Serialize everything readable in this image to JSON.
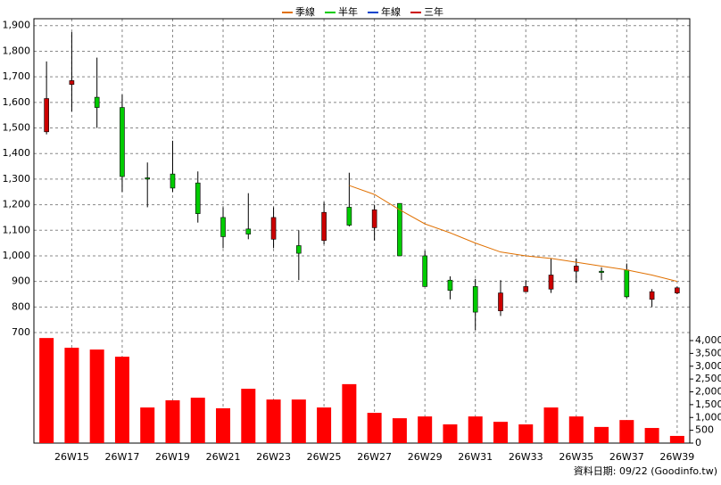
{
  "chart_data": {
    "type": "candlestick",
    "categories": [
      null,
      "26W15",
      null,
      "26W17",
      null,
      "26W19",
      null,
      "26W21",
      null,
      "26W23",
      null,
      "26W25",
      null,
      "26W27",
      null,
      "26W29",
      null,
      "26W31",
      null,
      "26W33",
      null,
      "26W35",
      null,
      "26W37",
      null,
      "26W39"
    ],
    "ohlc": {
      "open": [
        1485,
        1670,
        1620,
        1580,
        1305,
        1320,
        1285,
        1150,
        1105,
        1065,
        1040,
        1060,
        1190,
        1110,
        1205,
        1000,
        905,
        880,
        785,
        860,
        870,
        940,
        940,
        945,
        830,
        855
      ],
      "high": [
        1760,
        1875,
        1775,
        1630,
        1365,
        1450,
        1330,
        1190,
        1245,
        1190,
        1100,
        1210,
        1325,
        1200,
        1205,
        1020,
        920,
        910,
        905,
        905,
        990,
        990,
        955,
        970,
        870,
        880
      ],
      "low": [
        1475,
        1565,
        1500,
        1250,
        1190,
        1250,
        1130,
        1030,
        1065,
        1030,
        905,
        1045,
        1115,
        1060,
        1000,
        880,
        830,
        710,
        765,
        860,
        855,
        895,
        905,
        835,
        800,
        850
      ],
      "close": [
        1615,
        1685,
        1580,
        1310,
        1300,
        1265,
        1165,
        1075,
        1085,
        1150,
        1010,
        1170,
        1120,
        1180,
        1000,
        880,
        865,
        780,
        855,
        880,
        925,
        960,
        935,
        840,
        860,
        875
      ],
      "up_color": "#cc0000",
      "down_color": "#00cc00"
    },
    "series": [
      {
        "name": "季線",
        "color": "#e07000",
        "values": [
          null,
          null,
          null,
          null,
          null,
          null,
          null,
          null,
          null,
          null,
          null,
          null,
          1275,
          1240,
          1180,
          1125,
          1090,
          1050,
          1015,
          1000,
          990,
          975,
          960,
          945,
          925,
          900
        ]
      },
      {
        "name": "半年",
        "color": "#00cc00",
        "values": [
          null,
          null,
          null,
          null,
          null,
          null,
          null,
          null,
          null,
          null,
          null,
          null,
          null,
          null,
          null,
          null,
          null,
          null,
          null,
          null,
          null,
          null,
          null,
          null,
          null,
          null
        ]
      },
      {
        "name": "年線",
        "color": "#0044cc",
        "values": [
          null,
          null,
          null,
          null,
          null,
          null,
          null,
          null,
          null,
          null,
          null,
          null,
          null,
          null,
          null,
          null,
          null,
          null,
          null,
          null,
          null,
          null,
          null,
          null,
          null,
          null
        ]
      },
      {
        "name": "三年",
        "color": "#cc0000",
        "values": [
          null,
          null,
          null,
          null,
          null,
          null,
          null,
          null,
          null,
          null,
          null,
          null,
          null,
          null,
          null,
          null,
          null,
          null,
          null,
          null,
          null,
          null,
          null,
          null,
          null,
          null
        ]
      }
    ],
    "volume": {
      "color": "#ff0000",
      "axis": "y2",
      "values": [
        4100,
        3720,
        3650,
        3370,
        1390,
        1670,
        1770,
        1360,
        2120,
        1700,
        1700,
        1390,
        2300,
        1180,
        970,
        1040,
        730,
        1040,
        830,
        730,
        1390,
        1040,
        630,
        900,
        590,
        280
      ]
    },
    "ylim": [
      268,
      1927
    ],
    "yticks": [
      700,
      800,
      900,
      {
        "value": 1000,
        "label": "1,000"
      },
      {
        "value": 1100,
        "label": "1,100"
      },
      {
        "value": 1200,
        "label": "1,200"
      },
      {
        "value": 1300,
        "label": "1,300"
      },
      {
        "value": 1400,
        "label": "1,400"
      },
      {
        "value": 1500,
        "label": "1,500"
      },
      {
        "value": 1600,
        "label": "1,600"
      },
      {
        "value": 1700,
        "label": "1,700"
      },
      {
        "value": 1800,
        "label": "1,800"
      },
      {
        "value": 1900,
        "label": "1,900"
      }
    ],
    "y2lim": [
      0,
      16557
    ],
    "y2ticks": [
      0,
      500,
      {
        "value": 1000,
        "label": "1,000"
      },
      {
        "value": 1500,
        "label": "1,500"
      },
      {
        "value": 2000,
        "label": "2,000"
      },
      {
        "value": 2500,
        "label": "2,500"
      },
      {
        "value": 3000,
        "label": "3,000"
      },
      {
        "value": 3500,
        "label": "3,500"
      },
      {
        "value": 4000,
        "label": "4,000"
      }
    ],
    "grid": true,
    "footer": "資料日期: 09/22 (Goodinfo.tw)"
  }
}
